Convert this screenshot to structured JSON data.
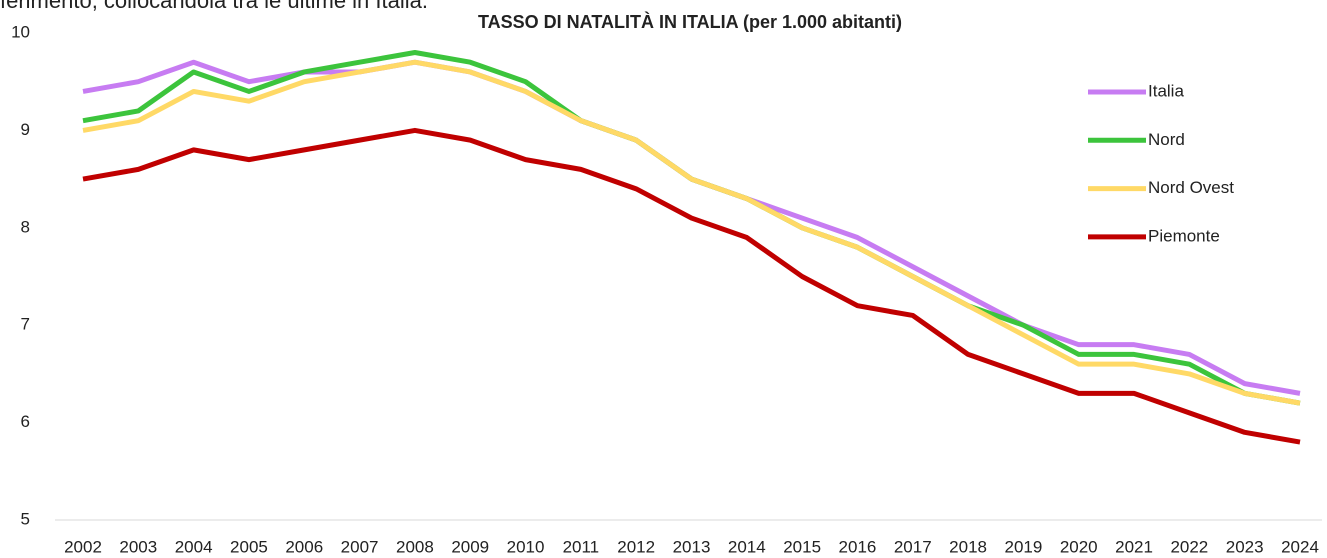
{
  "header_fragment": "ferimento, collocandola tra le ultime in Italia.",
  "chart_data": {
    "type": "line",
    "title": "TASSO DI NATALITÀ IN ITALIA (per 1.000 abitanti)",
    "categories": [
      "2002",
      "2003",
      "2004",
      "2005",
      "2006",
      "2007",
      "2008",
      "2009",
      "2010",
      "2011",
      "2012",
      "2013",
      "2014",
      "2015",
      "2016",
      "2017",
      "2018",
      "2019",
      "2020",
      "2021",
      "2022",
      "2023",
      "2024"
    ],
    "series": [
      {
        "name": "Italia",
        "color": "#c77cf2",
        "values": [
          9.4,
          9.5,
          9.7,
          9.5,
          9.6,
          9.6,
          9.7,
          9.6,
          9.4,
          9.1,
          8.9,
          8.5,
          8.3,
          8.1,
          7.9,
          7.6,
          7.3,
          7.0,
          6.8,
          6.8,
          6.7,
          6.4,
          6.3
        ]
      },
      {
        "name": "Nord",
        "color": "#3cc43c",
        "values": [
          9.1,
          9.2,
          9.6,
          9.4,
          9.6,
          9.7,
          9.8,
          9.7,
          9.5,
          9.1,
          8.9,
          8.5,
          8.3,
          8.0,
          7.8,
          7.5,
          7.2,
          7.0,
          6.7,
          6.7,
          6.6,
          6.3,
          6.2
        ]
      },
      {
        "name": "Nord Ovest",
        "color": "#ffd966",
        "values": [
          9.0,
          9.1,
          9.4,
          9.3,
          9.5,
          9.6,
          9.7,
          9.6,
          9.4,
          9.1,
          8.9,
          8.5,
          8.3,
          8.0,
          7.8,
          7.5,
          7.2,
          6.9,
          6.6,
          6.6,
          6.5,
          6.3,
          6.2
        ]
      },
      {
        "name": "Piemonte",
        "color": "#c00000",
        "values": [
          8.5,
          8.6,
          8.8,
          8.7,
          8.8,
          8.9,
          9.0,
          8.9,
          8.7,
          8.6,
          8.4,
          8.1,
          7.9,
          7.5,
          7.2,
          7.1,
          6.7,
          6.5,
          6.3,
          6.3,
          6.1,
          5.9,
          5.8
        ]
      }
    ],
    "ylim": [
      5,
      10
    ],
    "yticks": [
      5,
      6,
      7,
      8,
      9,
      10
    ],
    "grid": false,
    "legend": "right"
  }
}
